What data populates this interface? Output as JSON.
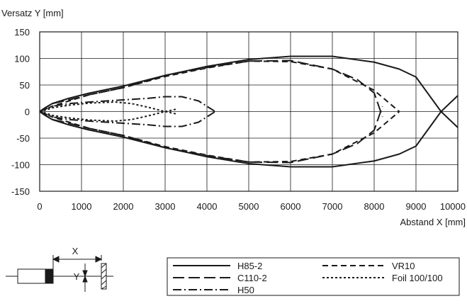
{
  "chart_data": {
    "type": "line",
    "ylabel": "Versatz Y [mm]",
    "xlabel": "Abstand X [mm]",
    "xlim": [
      0,
      10000
    ],
    "ylim": [
      -150,
      150
    ],
    "xticks": [
      "0",
      "1000",
      "2000",
      "3000",
      "4000",
      "5000",
      "6000",
      "7000",
      "8000",
      "9000",
      "10000"
    ],
    "yticks": [
      "150",
      "100",
      "50",
      "0",
      "-50",
      "-100",
      "-150"
    ],
    "grid": true,
    "legend_position": "bottom-right box",
    "series": [
      {
        "name": "H85-2",
        "style": "solid",
        "x": [
          0,
          150,
          300,
          700,
          1200,
          2000,
          3000,
          4000,
          5000,
          6000,
          7000,
          8000,
          8600,
          9000,
          9600,
          10000
        ],
        "y": [
          0,
          8,
          15,
          25,
          35,
          48,
          68,
          85,
          98,
          104,
          104,
          93,
          80,
          65,
          0,
          -30
        ]
      },
      {
        "name": "C110-2",
        "style": "longdash",
        "x": [
          0,
          150,
          300,
          700,
          1200,
          2000,
          3000,
          4000,
          5000,
          6000,
          7000,
          7600,
          8000,
          8200
        ],
        "y": [
          0,
          8,
          15,
          22,
          32,
          45,
          68,
          83,
          95,
          96,
          80,
          60,
          35,
          -10
        ]
      },
      {
        "name": "H50",
        "style": "dashdot",
        "x": [
          0,
          150,
          300,
          700,
          1200,
          2000,
          2600,
          3000,
          3400,
          3800,
          4200
        ],
        "y": [
          0,
          5,
          10,
          15,
          18,
          22,
          25,
          28,
          28,
          20,
          0
        ]
      },
      {
        "name": "VR10",
        "style": "dash",
        "x": [
          0,
          150,
          300,
          700,
          1200,
          2000,
          3000,
          4000,
          5000,
          6000,
          7000,
          7500,
          8000,
          8300,
          8600
        ],
        "y": [
          0,
          5,
          10,
          20,
          32,
          45,
          66,
          82,
          95,
          94,
          80,
          60,
          40,
          20,
          0
        ]
      },
      {
        "name": "Foil 100/100",
        "style": "dot",
        "x": [
          0,
          150,
          300,
          700,
          1200,
          1800,
          2200,
          2600,
          3000,
          3300
        ],
        "y": [
          0,
          3,
          7,
          12,
          16,
          18,
          15,
          8,
          0,
          -5
        ]
      }
    ]
  },
  "diagram": {
    "x_label": "X",
    "y_label": "Y"
  }
}
